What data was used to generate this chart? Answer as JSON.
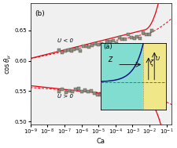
{
  "xlabel": "Ca",
  "panel_b_label": "(b)",
  "panel_a_label": "(a)",
  "u_neg_label": "U < 0",
  "u_pos_label": "U > 0",
  "ylim": [
    0.495,
    0.695
  ],
  "xlim_log_min": -9,
  "xlim_log_max": -0.7,
  "yticks": [
    0.5,
    0.55,
    0.6,
    0.65
  ],
  "xtick_exponents": [
    -9,
    -8,
    -7,
    -6,
    -5,
    -4,
    -3,
    -2,
    -1
  ],
  "bg_color": "#f0f0f0",
  "line_solid_color": "#e8000a",
  "line_dashed_color": "#e8000a",
  "scatter_facecolor": "#909080",
  "scatter_edge": "#404040",
  "inset_teal": "#80ddd0",
  "inset_yellow": "#f0e888",
  "inset_curve_color": "#000080",
  "inset_border": "#000000"
}
